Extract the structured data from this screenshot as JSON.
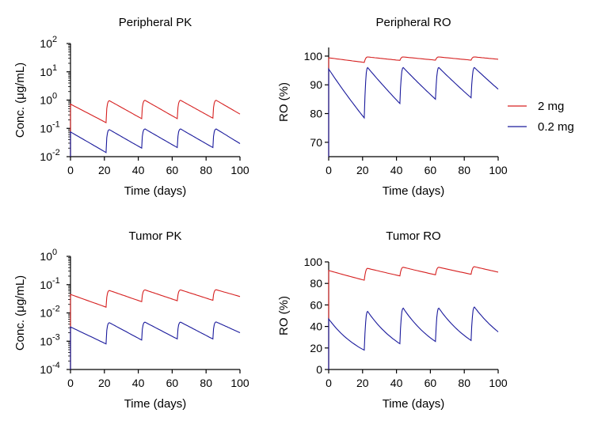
{
  "chart_data": [
    {
      "type": "line",
      "title": "Peripheral PK",
      "xlabel": "Time (days)",
      "ylabel": "Conc. (μg/mL)",
      "xlim": [
        0,
        100
      ],
      "xticks": [
        "0",
        "20",
        "40",
        "60",
        "80",
        "100"
      ],
      "ylim": [
        0.01,
        100
      ],
      "yscale": "log",
      "ytick_bases": [
        "10",
        "10",
        "10",
        "10",
        "10"
      ],
      "ytick_exponents": [
        "-2",
        "-1",
        "0",
        "1",
        "2"
      ],
      "dose_times": [
        0,
        21,
        42,
        63,
        84
      ],
      "series": [
        {
          "name": "2 mg",
          "color": "#d62020",
          "dose_peaks": [
            0.72,
            0.95,
            0.98,
            0.98,
            0.98
          ],
          "troughs": [
            0.16,
            0.22,
            0.22,
            0.23,
            0.32
          ],
          "end_value": 0.32
        },
        {
          "name": "0.2 mg",
          "color": "#1a1a9c",
          "dose_peaks": [
            0.075,
            0.09,
            0.095,
            0.095,
            0.095
          ],
          "troughs": [
            0.014,
            0.02,
            0.021,
            0.021,
            0.029
          ],
          "end_value": 0.029
        }
      ]
    },
    {
      "type": "line",
      "title": "Peripheral RO",
      "xlabel": "Time (days)",
      "ylabel": "RO (%)",
      "xlim": [
        0,
        100
      ],
      "xticks": [
        "0",
        "20",
        "40",
        "60",
        "80",
        "100"
      ],
      "ylim": [
        65,
        103
      ],
      "yticks": [
        "70",
        "80",
        "90",
        "100"
      ],
      "dose_times": [
        0,
        21,
        42,
        63,
        84
      ],
      "series": [
        {
          "name": "2 mg",
          "color": "#d62020",
          "dose_peaks": [
            99.4,
            99.7,
            99.7,
            99.7,
            99.7
          ],
          "troughs": [
            97.8,
            98.5,
            98.6,
            98.6,
            98.9
          ],
          "end_value": 98.9
        },
        {
          "name": "0.2 mg",
          "color": "#1a1a9c",
          "dose_peaks": [
            95.5,
            96.0,
            96.0,
            96.0,
            96.0
          ],
          "troughs": [
            78.5,
            83.5,
            85.0,
            85.5,
            88.5
          ],
          "end_value": 88.5
        }
      ]
    },
    {
      "type": "line",
      "title": "Tumor PK",
      "xlabel": "Time (days)",
      "ylabel": "Conc. (μg/mL)",
      "xlim": [
        0,
        100
      ],
      "xticks": [
        "0",
        "20",
        "40",
        "60",
        "80",
        "100"
      ],
      "ylim": [
        0.0001,
        1
      ],
      "yscale": "log",
      "ytick_bases": [
        "10",
        "10",
        "10",
        "10",
        "10"
      ],
      "ytick_exponents": [
        "-4",
        "-3",
        "-2",
        "-1",
        "0"
      ],
      "dose_times": [
        0,
        21,
        42,
        63,
        84
      ],
      "series": [
        {
          "name": "2 mg",
          "color": "#d62020",
          "dose_peaks": [
            0.045,
            0.062,
            0.065,
            0.065,
            0.066
          ],
          "troughs": [
            0.016,
            0.025,
            0.027,
            0.028,
            0.038
          ],
          "end_value": 0.038
        },
        {
          "name": "0.2 mg",
          "color": "#1a1a9c",
          "dose_peaks": [
            0.0032,
            0.0045,
            0.0047,
            0.0047,
            0.0048
          ],
          "troughs": [
            0.0008,
            0.0011,
            0.0012,
            0.0012,
            0.002
          ],
          "end_value": 0.002
        }
      ]
    },
    {
      "type": "line",
      "title": "Tumor RO",
      "xlabel": "Time (days)",
      "ylabel": "RO (%)",
      "xlim": [
        0,
        100
      ],
      "xticks": [
        "0",
        "20",
        "40",
        "60",
        "80",
        "100"
      ],
      "ylim": [
        0,
        100
      ],
      "yticks": [
        "0",
        "20",
        "40",
        "60",
        "80",
        "100"
      ],
      "dose_times": [
        0,
        21,
        42,
        63,
        84
      ],
      "series": [
        {
          "name": "2 mg",
          "color": "#d62020",
          "dose_peaks": [
            92,
            94,
            95,
            95,
            95.5
          ],
          "troughs": [
            83,
            87,
            88,
            88.5,
            90.5
          ],
          "end_value": 90.5
        },
        {
          "name": "0.2 mg",
          "color": "#1a1a9c",
          "dose_peaks": [
            47,
            54,
            57,
            57,
            58
          ],
          "troughs": [
            18,
            24,
            26,
            27,
            35
          ],
          "end_value": 35
        }
      ]
    }
  ],
  "legend": {
    "placement": "right",
    "entries": [
      {
        "label": "2 mg",
        "color": "#d62020"
      },
      {
        "label": "0.2 mg",
        "color": "#1a1a9c"
      }
    ]
  }
}
